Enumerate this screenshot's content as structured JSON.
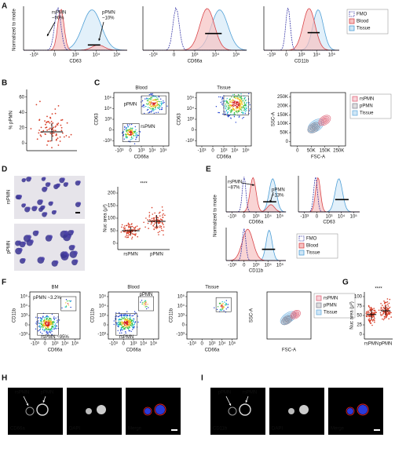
{
  "panels": {
    "A": {
      "label": "A",
      "y_label": "Normalized to mode",
      "plots": [
        {
          "x_label": "CD63",
          "x_ticks": [
            "-10³",
            "0",
            "10³",
            "10⁴",
            "10⁵"
          ],
          "annotations": [
            "rsPMN",
            "~90%",
            "pPMN",
            "~10%"
          ]
        },
        {
          "x_label": "CD66a",
          "x_ticks": [
            "-10³",
            "0",
            "10³",
            "10⁴",
            "10⁵"
          ]
        },
        {
          "x_label": "CD11b",
          "x_ticks": [
            "-10³",
            "0",
            "10³",
            "10⁴",
            "10⁵"
          ]
        }
      ],
      "legend": [
        "FMO",
        "Blood",
        "Tissue"
      ]
    },
    "B": {
      "label": "B",
      "y_label": "% pPMN",
      "y_ticks": [
        "60",
        "40",
        "20",
        "0"
      ]
    },
    "C": {
      "label": "C",
      "plots": [
        {
          "title": "Blood",
          "y_label": "CD63",
          "x_label": "CD66a",
          "y_ticks": [
            "10⁵",
            "10⁴",
            "10³",
            "0",
            "-10³"
          ],
          "x_ticks": [
            "-10³",
            "0",
            "10³",
            "10⁴",
            "10⁵"
          ],
          "gates": [
            "pPMN",
            "rsPMN"
          ]
        },
        {
          "title": "Tissue",
          "y_label": "CD63",
          "x_label": "CD66a",
          "y_ticks": [
            "10⁵",
            "10⁴",
            "10³",
            "0",
            "-10³"
          ],
          "x_ticks": [
            "-10³",
            "0",
            "10³",
            "10⁴",
            "10⁵"
          ]
        },
        {
          "y_label": "SSC-A",
          "x_label": "FSC-A",
          "y_ticks": [
            "250K",
            "200K",
            "150K",
            "100K",
            "50K",
            "0"
          ],
          "x_ticks": [
            "0",
            "50K",
            "150K",
            "250K"
          ],
          "legend": [
            "rsPMN",
            "pPMN",
            "Tissue"
          ]
        }
      ]
    },
    "D": {
      "label": "D",
      "image_labels": [
        "rsPMN",
        "pPMN"
      ],
      "y_label": "Nuc area (μ²)",
      "y_ticks": [
        "200",
        "150",
        "100",
        "50",
        "0"
      ],
      "categories": [
        "rsPMN",
        "pPMN"
      ],
      "significance": "****"
    },
    "E": {
      "label": "E",
      "y_label": "Normalized to mode",
      "plots": [
        {
          "x_label": "CD66a",
          "x_ticks": [
            "-10³",
            "0",
            "10³",
            "10⁴",
            "10⁵"
          ],
          "annotations": [
            "rsPMN",
            "~87%",
            "pPMN",
            "~13%"
          ]
        },
        {
          "x_label": "CD63",
          "x_ticks": [
            "-10³",
            "0",
            "10³",
            "10⁴",
            "10⁵"
          ]
        },
        {
          "x_label": "CD11b",
          "x_ticks": [
            "-10³",
            "0",
            "10³",
            "10⁴",
            "10⁵"
          ]
        }
      ],
      "legend": [
        "FMO",
        "Blood",
        "Tissue"
      ]
    },
    "F": {
      "label": "F",
      "plots": [
        {
          "title": "BM",
          "y_label": "CD11b",
          "x_label": "CD66a",
          "y_ticks": [
            "10⁵",
            "10⁴",
            "10³",
            "0",
            "-10³"
          ],
          "x_ticks": [
            "-10³",
            "0",
            "10³",
            "10⁴",
            "10⁵"
          ],
          "gates": [
            "pPMN ~3.2%",
            "rsPMN ~95%"
          ]
        },
        {
          "title": "Blood",
          "y_label": "CD11b",
          "x_label": "CD66a",
          "y_ticks": [
            "10⁵",
            "10⁴",
            "10³",
            "0",
            "-10³"
          ],
          "x_ticks": [
            "-10³",
            "0",
            "10³",
            "10⁴",
            "10⁵"
          ],
          "gates": [
            "pPMN",
            "rsPMN"
          ]
        },
        {
          "title": "Tissue",
          "y_label": "CD11b",
          "x_label": "CD66a",
          "y_ticks": [
            "10⁵",
            "10⁴",
            "10³",
            "0",
            "-10³"
          ],
          "x_ticks": [
            "-10³",
            "0",
            "10³",
            "10⁴",
            "10⁵"
          ]
        },
        {
          "y_label": "SSC-A",
          "x_label": "FSC-A",
          "legend": [
            "rsPMN",
            "pPMN",
            "Tissue"
          ]
        }
      ]
    },
    "G": {
      "label": "G",
      "y_label": "Nuc area (μ²)",
      "y_ticks": [
        "100",
        "75",
        "50",
        "25",
        "0"
      ],
      "categories": [
        "rsPMN",
        "pPMN"
      ],
      "significance": "****"
    },
    "H": {
      "label": "H",
      "arrows": [
        "rsPMN",
        "pPMN"
      ],
      "images": [
        "CD66a",
        "DAPI",
        "Merge"
      ]
    },
    "I": {
      "label": "I",
      "arrows": [
        "pPMN",
        "rsPMN"
      ],
      "images": [
        "CD11b",
        "DAPI",
        "Merge"
      ]
    }
  }
}
